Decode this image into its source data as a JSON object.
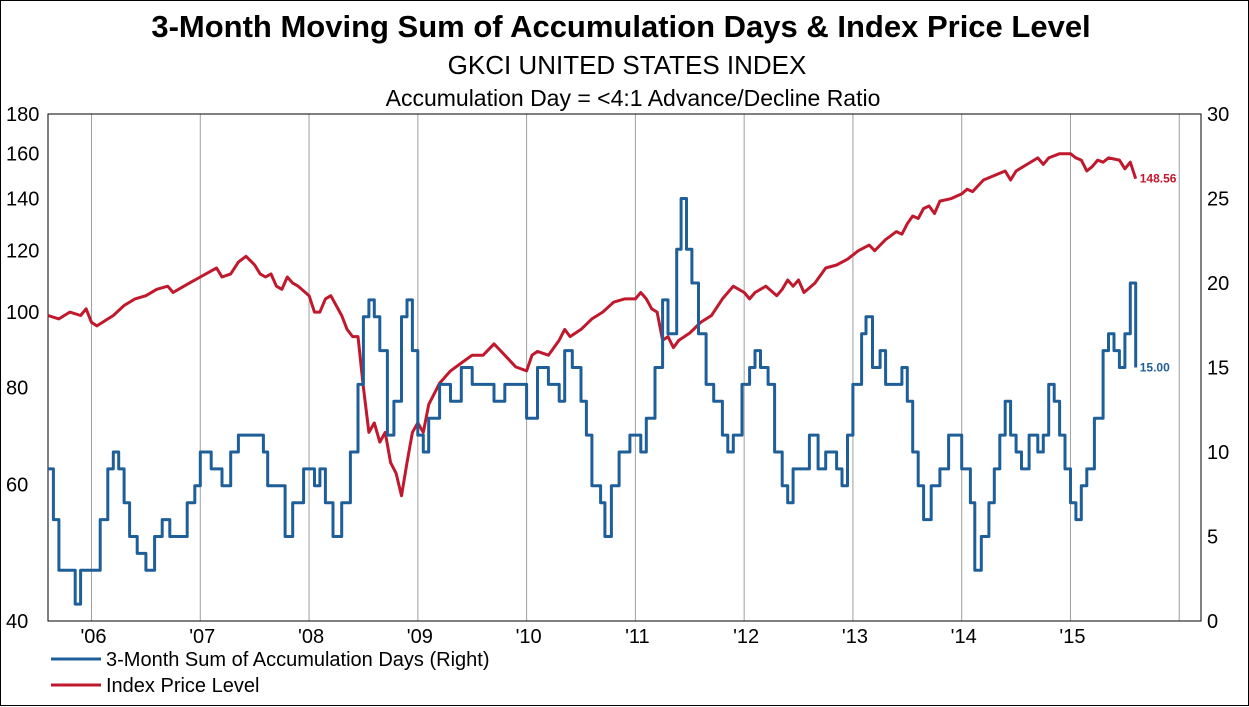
{
  "chart_data": {
    "type": "line",
    "title": "3-Month Moving Sum of Accumulation Days & Index Price Level",
    "subtitle": "GKCI UNITED STATES INDEX",
    "subtitle2": "Accumulation Day = <4:1 Advance/Decline Ratio",
    "x_tick_labels": [
      "'06",
      "'07",
      "'08",
      "'09",
      "'10",
      "'11",
      "'12",
      "'13",
      "'14",
      "'15"
    ],
    "x_range": [
      2005.6,
      2016.2
    ],
    "left_axis": {
      "scale": "log",
      "range": [
        40,
        180
      ],
      "ticks": [
        40,
        60,
        80,
        100,
        120,
        140,
        160,
        180
      ]
    },
    "right_axis": {
      "scale": "linear",
      "range": [
        0,
        30
      ],
      "ticks": [
        0,
        5,
        10,
        15,
        20,
        25,
        30
      ]
    },
    "grid": "vertical",
    "legend_position": "bottom-left",
    "colors": {
      "accumulation": "#1f5f99",
      "price": "#c0182c"
    },
    "series": [
      {
        "name": "3-Month Sum of Accumulation Days   (Right)",
        "axis": "right",
        "end_label": "15.00",
        "points": [
          [
            2005.6,
            9
          ],
          [
            2005.65,
            6
          ],
          [
            2005.7,
            3
          ],
          [
            2005.78,
            3
          ],
          [
            2005.85,
            1
          ],
          [
            2005.9,
            3
          ],
          [
            2006.0,
            3
          ],
          [
            2006.08,
            6
          ],
          [
            2006.15,
            9
          ],
          [
            2006.2,
            10
          ],
          [
            2006.25,
            9
          ],
          [
            2006.3,
            7
          ],
          [
            2006.35,
            5
          ],
          [
            2006.42,
            4
          ],
          [
            2006.5,
            3
          ],
          [
            2006.58,
            5
          ],
          [
            2006.65,
            6
          ],
          [
            2006.72,
            5
          ],
          [
            2006.8,
            5
          ],
          [
            2006.88,
            7
          ],
          [
            2006.95,
            8
          ],
          [
            2007.0,
            10
          ],
          [
            2007.05,
            10
          ],
          [
            2007.1,
            9
          ],
          [
            2007.2,
            8
          ],
          [
            2007.28,
            10
          ],
          [
            2007.35,
            11
          ],
          [
            2007.45,
            11
          ],
          [
            2007.52,
            11
          ],
          [
            2007.58,
            10
          ],
          [
            2007.62,
            8
          ],
          [
            2007.7,
            8
          ],
          [
            2007.78,
            5
          ],
          [
            2007.85,
            7
          ],
          [
            2007.95,
            9
          ],
          [
            2008.0,
            9
          ],
          [
            2008.05,
            8
          ],
          [
            2008.1,
            9
          ],
          [
            2008.15,
            7
          ],
          [
            2008.22,
            5
          ],
          [
            2008.3,
            7
          ],
          [
            2008.38,
            10
          ],
          [
            2008.45,
            14
          ],
          [
            2008.5,
            18
          ],
          [
            2008.55,
            19
          ],
          [
            2008.6,
            18
          ],
          [
            2008.65,
            16
          ],
          [
            2008.72,
            11
          ],
          [
            2008.78,
            13
          ],
          [
            2008.85,
            18
          ],
          [
            2008.9,
            19
          ],
          [
            2008.95,
            16
          ],
          [
            2009.0,
            11
          ],
          [
            2009.05,
            10
          ],
          [
            2009.1,
            12
          ],
          [
            2009.2,
            14
          ],
          [
            2009.3,
            13
          ],
          [
            2009.4,
            15
          ],
          [
            2009.5,
            14
          ],
          [
            2009.6,
            14
          ],
          [
            2009.7,
            13
          ],
          [
            2009.8,
            14
          ],
          [
            2009.9,
            14
          ],
          [
            2010.0,
            12
          ],
          [
            2010.1,
            15
          ],
          [
            2010.2,
            14
          ],
          [
            2010.3,
            13
          ],
          [
            2010.35,
            16
          ],
          [
            2010.42,
            15
          ],
          [
            2010.5,
            13
          ],
          [
            2010.55,
            11
          ],
          [
            2010.6,
            8
          ],
          [
            2010.68,
            7
          ],
          [
            2010.72,
            5
          ],
          [
            2010.78,
            8
          ],
          [
            2010.85,
            10
          ],
          [
            2010.95,
            11
          ],
          [
            2011.05,
            10
          ],
          [
            2011.1,
            12
          ],
          [
            2011.18,
            15
          ],
          [
            2011.25,
            19
          ],
          [
            2011.3,
            17
          ],
          [
            2011.38,
            22
          ],
          [
            2011.42,
            25
          ],
          [
            2011.47,
            22
          ],
          [
            2011.52,
            20
          ],
          [
            2011.58,
            17
          ],
          [
            2011.65,
            14
          ],
          [
            2011.72,
            13
          ],
          [
            2011.8,
            11
          ],
          [
            2011.85,
            10
          ],
          [
            2011.9,
            11
          ],
          [
            2011.98,
            14
          ],
          [
            2012.05,
            15
          ],
          [
            2012.1,
            16
          ],
          [
            2012.15,
            15
          ],
          [
            2012.22,
            14
          ],
          [
            2012.28,
            10
          ],
          [
            2012.35,
            8
          ],
          [
            2012.4,
            7
          ],
          [
            2012.45,
            9
          ],
          [
            2012.55,
            9
          ],
          [
            2012.6,
            11
          ],
          [
            2012.68,
            9
          ],
          [
            2012.75,
            10
          ],
          [
            2012.85,
            9
          ],
          [
            2012.9,
            8
          ],
          [
            2012.95,
            11
          ],
          [
            2013.0,
            14
          ],
          [
            2013.08,
            17
          ],
          [
            2013.12,
            18
          ],
          [
            2013.18,
            15
          ],
          [
            2013.25,
            16
          ],
          [
            2013.3,
            14
          ],
          [
            2013.38,
            14
          ],
          [
            2013.45,
            15
          ],
          [
            2013.5,
            13
          ],
          [
            2013.55,
            10
          ],
          [
            2013.6,
            8
          ],
          [
            2013.65,
            6
          ],
          [
            2013.72,
            8
          ],
          [
            2013.8,
            9
          ],
          [
            2013.88,
            11
          ],
          [
            2013.95,
            11
          ],
          [
            2014.0,
            9
          ],
          [
            2014.08,
            7
          ],
          [
            2014.12,
            3
          ],
          [
            2014.18,
            5
          ],
          [
            2014.25,
            7
          ],
          [
            2014.3,
            9
          ],
          [
            2014.35,
            11
          ],
          [
            2014.4,
            13
          ],
          [
            2014.45,
            11
          ],
          [
            2014.5,
            10
          ],
          [
            2014.55,
            9
          ],
          [
            2014.62,
            11
          ],
          [
            2014.7,
            10
          ],
          [
            2014.75,
            11
          ],
          [
            2014.8,
            14
          ],
          [
            2014.85,
            13
          ],
          [
            2014.9,
            11
          ],
          [
            2014.95,
            9
          ],
          [
            2015.0,
            7
          ],
          [
            2015.05,
            6
          ],
          [
            2015.1,
            8
          ],
          [
            2015.15,
            9
          ],
          [
            2015.22,
            12
          ],
          [
            2015.3,
            16
          ],
          [
            2015.35,
            17
          ],
          [
            2015.4,
            16
          ],
          [
            2015.45,
            15
          ],
          [
            2015.5,
            17
          ],
          [
            2015.55,
            20
          ],
          [
            2015.6,
            15
          ]
        ]
      },
      {
        "name": "Index Price Level",
        "axis": "left",
        "end_label": "148.56",
        "points": [
          [
            2005.6,
            99
          ],
          [
            2005.7,
            98
          ],
          [
            2005.8,
            100
          ],
          [
            2005.9,
            99
          ],
          [
            2005.95,
            101
          ],
          [
            2006.0,
            97
          ],
          [
            2006.05,
            96
          ],
          [
            2006.1,
            97
          ],
          [
            2006.2,
            99
          ],
          [
            2006.3,
            102
          ],
          [
            2006.4,
            104
          ],
          [
            2006.5,
            105
          ],
          [
            2006.6,
            107
          ],
          [
            2006.7,
            108
          ],
          [
            2006.75,
            106
          ],
          [
            2006.8,
            107
          ],
          [
            2006.9,
            109
          ],
          [
            2007.0,
            111
          ],
          [
            2007.1,
            113
          ],
          [
            2007.15,
            114
          ],
          [
            2007.2,
            111
          ],
          [
            2007.28,
            112
          ],
          [
            2007.35,
            116
          ],
          [
            2007.42,
            118
          ],
          [
            2007.5,
            115
          ],
          [
            2007.55,
            112
          ],
          [
            2007.6,
            111
          ],
          [
            2007.65,
            112
          ],
          [
            2007.7,
            108
          ],
          [
            2007.75,
            107
          ],
          [
            2007.8,
            111
          ],
          [
            2007.85,
            109
          ],
          [
            2007.9,
            108
          ],
          [
            2008.0,
            105
          ],
          [
            2008.05,
            100
          ],
          [
            2008.1,
            100
          ],
          [
            2008.15,
            104
          ],
          [
            2008.2,
            105
          ],
          [
            2008.3,
            99
          ],
          [
            2008.35,
            95
          ],
          [
            2008.4,
            93
          ],
          [
            2008.45,
            93
          ],
          [
            2008.5,
            80
          ],
          [
            2008.55,
            70
          ],
          [
            2008.6,
            72
          ],
          [
            2008.65,
            68
          ],
          [
            2008.7,
            70
          ],
          [
            2008.75,
            64
          ],
          [
            2008.8,
            62
          ],
          [
            2008.85,
            58
          ],
          [
            2008.9,
            64
          ],
          [
            2008.95,
            70
          ],
          [
            2009.0,
            72
          ],
          [
            2009.05,
            70
          ],
          [
            2009.1,
            76
          ],
          [
            2009.2,
            81
          ],
          [
            2009.3,
            84
          ],
          [
            2009.4,
            86
          ],
          [
            2009.5,
            88
          ],
          [
            2009.6,
            88
          ],
          [
            2009.7,
            91
          ],
          [
            2009.8,
            88
          ],
          [
            2009.9,
            85
          ],
          [
            2010.0,
            84
          ],
          [
            2010.05,
            88
          ],
          [
            2010.1,
            89
          ],
          [
            2010.2,
            88
          ],
          [
            2010.3,
            92
          ],
          [
            2010.35,
            95
          ],
          [
            2010.4,
            93
          ],
          [
            2010.5,
            95
          ],
          [
            2010.6,
            98
          ],
          [
            2010.7,
            100
          ],
          [
            2010.8,
            103
          ],
          [
            2010.9,
            104
          ],
          [
            2011.0,
            104
          ],
          [
            2011.05,
            106
          ],
          [
            2011.1,
            104
          ],
          [
            2011.15,
            101
          ],
          [
            2011.2,
            100
          ],
          [
            2011.25,
            92
          ],
          [
            2011.3,
            93
          ],
          [
            2011.35,
            90
          ],
          [
            2011.4,
            92
          ],
          [
            2011.5,
            94
          ],
          [
            2011.6,
            97
          ],
          [
            2011.7,
            99
          ],
          [
            2011.8,
            104
          ],
          [
            2011.9,
            108
          ],
          [
            2012.0,
            106
          ],
          [
            2012.05,
            104
          ],
          [
            2012.1,
            106
          ],
          [
            2012.2,
            108
          ],
          [
            2012.3,
            105
          ],
          [
            2012.35,
            107
          ],
          [
            2012.4,
            110
          ],
          [
            2012.45,
            108
          ],
          [
            2012.5,
            110
          ],
          [
            2012.55,
            106
          ],
          [
            2012.65,
            109
          ],
          [
            2012.75,
            114
          ],
          [
            2012.85,
            115
          ],
          [
            2012.95,
            117
          ],
          [
            2013.05,
            120
          ],
          [
            2013.15,
            122
          ],
          [
            2013.2,
            120
          ],
          [
            2013.3,
            124
          ],
          [
            2013.4,
            127
          ],
          [
            2013.45,
            126
          ],
          [
            2013.5,
            130
          ],
          [
            2013.55,
            133
          ],
          [
            2013.6,
            132
          ],
          [
            2013.65,
            136
          ],
          [
            2013.7,
            137
          ],
          [
            2013.75,
            134
          ],
          [
            2013.8,
            139
          ],
          [
            2013.9,
            140
          ],
          [
            2014.0,
            142
          ],
          [
            2014.05,
            144
          ],
          [
            2014.1,
            143
          ],
          [
            2014.2,
            148
          ],
          [
            2014.3,
            150
          ],
          [
            2014.4,
            152
          ],
          [
            2014.45,
            148
          ],
          [
            2014.5,
            152
          ],
          [
            2014.6,
            155
          ],
          [
            2014.7,
            158
          ],
          [
            2014.75,
            155
          ],
          [
            2014.8,
            158
          ],
          [
            2014.9,
            160
          ],
          [
            2015.0,
            160
          ],
          [
            2015.05,
            158
          ],
          [
            2015.1,
            157
          ],
          [
            2015.15,
            152
          ],
          [
            2015.2,
            154
          ],
          [
            2015.25,
            157
          ],
          [
            2015.3,
            156
          ],
          [
            2015.35,
            158
          ],
          [
            2015.45,
            157
          ],
          [
            2015.5,
            153
          ],
          [
            2015.55,
            156
          ],
          [
            2015.6,
            148.56
          ]
        ]
      }
    ]
  }
}
